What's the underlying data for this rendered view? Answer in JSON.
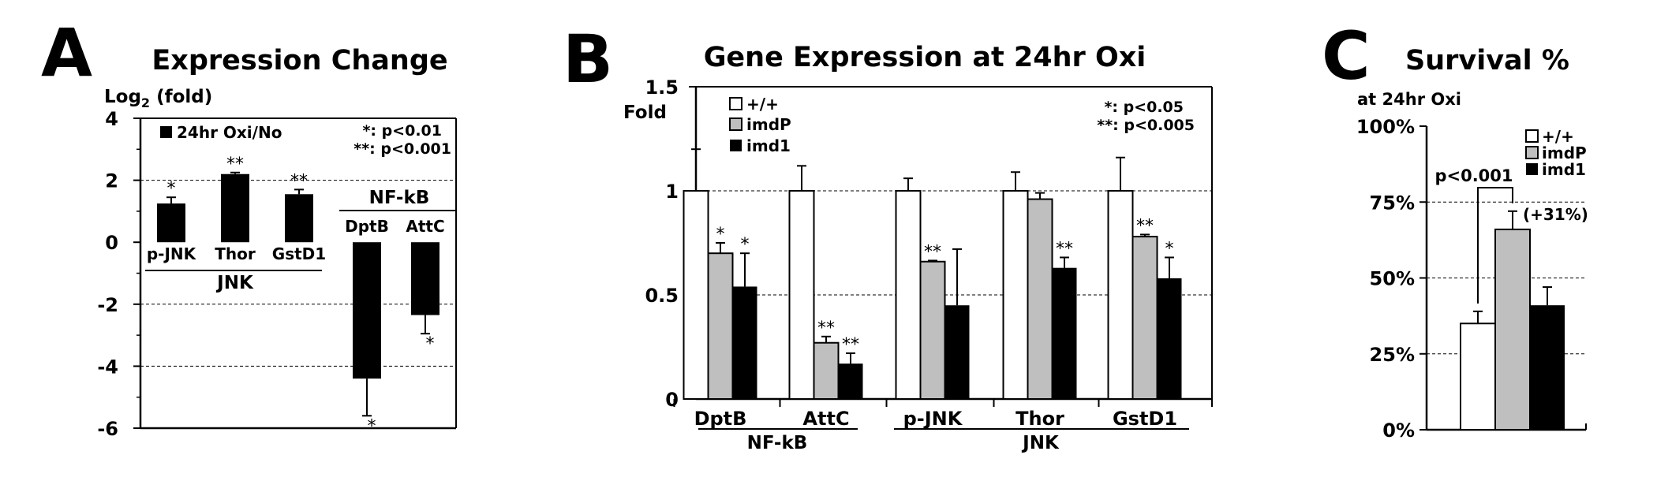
{
  "chart_data": [
    {
      "type": "bar",
      "panel_letter": "A",
      "title": "Expression Change",
      "ylabel_main": "Log",
      "ylabel_sub": "2",
      "ylabel_rest": " (fold)",
      "ylim": [
        -6,
        4
      ],
      "yticks": [
        "4",
        "2",
        "0",
        "-2",
        "-4",
        "-6"
      ],
      "grid": true,
      "legend_position": "top-left",
      "series": [
        {
          "name": "24hr Oxi/No",
          "color": "#000000"
        }
      ],
      "categories": [
        "p-JNK",
        "Thor",
        "GstD1",
        "DptB",
        "AttC"
      ],
      "values": [
        1.25,
        2.2,
        1.55,
        -4.4,
        -2.35
      ],
      "errors": [
        0.2,
        0.05,
        0.15,
        1.2,
        0.6
      ],
      "significance": [
        "*",
        "**",
        "**",
        "*",
        "*"
      ],
      "group_labels": [
        "JNK",
        "NF-kB"
      ],
      "notes": [
        "*: p<0.01",
        "**: p<0.001"
      ]
    },
    {
      "type": "bar",
      "panel_letter": "B",
      "title": "Gene Expression at 24hr Oxi",
      "ylabel": "Fold",
      "ylim": [
        0,
        1.5
      ],
      "yticks": [
        "1.5",
        "1",
        "0.5",
        "0"
      ],
      "grid": true,
      "legend_position": "top-left",
      "categories": [
        "DptB",
        "AttC",
        "p-JNK",
        "Thor",
        "GstD1"
      ],
      "series": [
        {
          "name": "+/+",
          "color": "#ffffff",
          "values": [
            1.0,
            1.0,
            1.0,
            1.0,
            1.0
          ],
          "errors": [
            0.2,
            0.12,
            0.06,
            0.09,
            0.16
          ],
          "significance": [
            "",
            "",
            "",
            "",
            ""
          ]
        },
        {
          "name": "imdP",
          "color": "#bfbfbf",
          "values": [
            0.7,
            0.27,
            0.66,
            0.96,
            0.78
          ],
          "errors": [
            0.05,
            0.03,
            0.005,
            0.03,
            0.01
          ],
          "significance": [
            "*",
            "**",
            "**",
            "",
            "**"
          ]
        },
        {
          "name": "imd1",
          "color": "#000000",
          "values": [
            0.54,
            0.17,
            0.45,
            0.63,
            0.58
          ],
          "errors": [
            0.16,
            0.05,
            0.27,
            0.05,
            0.1
          ],
          "significance": [
            "*",
            "**",
            "",
            "**",
            "*"
          ]
        }
      ],
      "group_labels": [
        "NF-kB",
        "JNK"
      ],
      "notes": [
        "*: p<0.05",
        "**: p<0.005"
      ]
    },
    {
      "type": "bar",
      "panel_letter": "C",
      "title": "Survival %",
      "subtitle": "at 24hr Oxi",
      "ylim": [
        0,
        100
      ],
      "yticks": [
        "100%",
        "75%",
        "50%",
        "25%",
        "0%"
      ],
      "grid": true,
      "legend_position": "top-right",
      "series": [
        {
          "name": "+/+",
          "color": "#ffffff",
          "value": 35,
          "error": 4
        },
        {
          "name": "imdP",
          "color": "#bfbfbf",
          "value": 66,
          "error": 6
        },
        {
          "name": "imd1",
          "color": "#000000",
          "value": 41,
          "error": 6
        }
      ],
      "annotations": [
        "p<0.001",
        "(+31%)"
      ]
    }
  ]
}
